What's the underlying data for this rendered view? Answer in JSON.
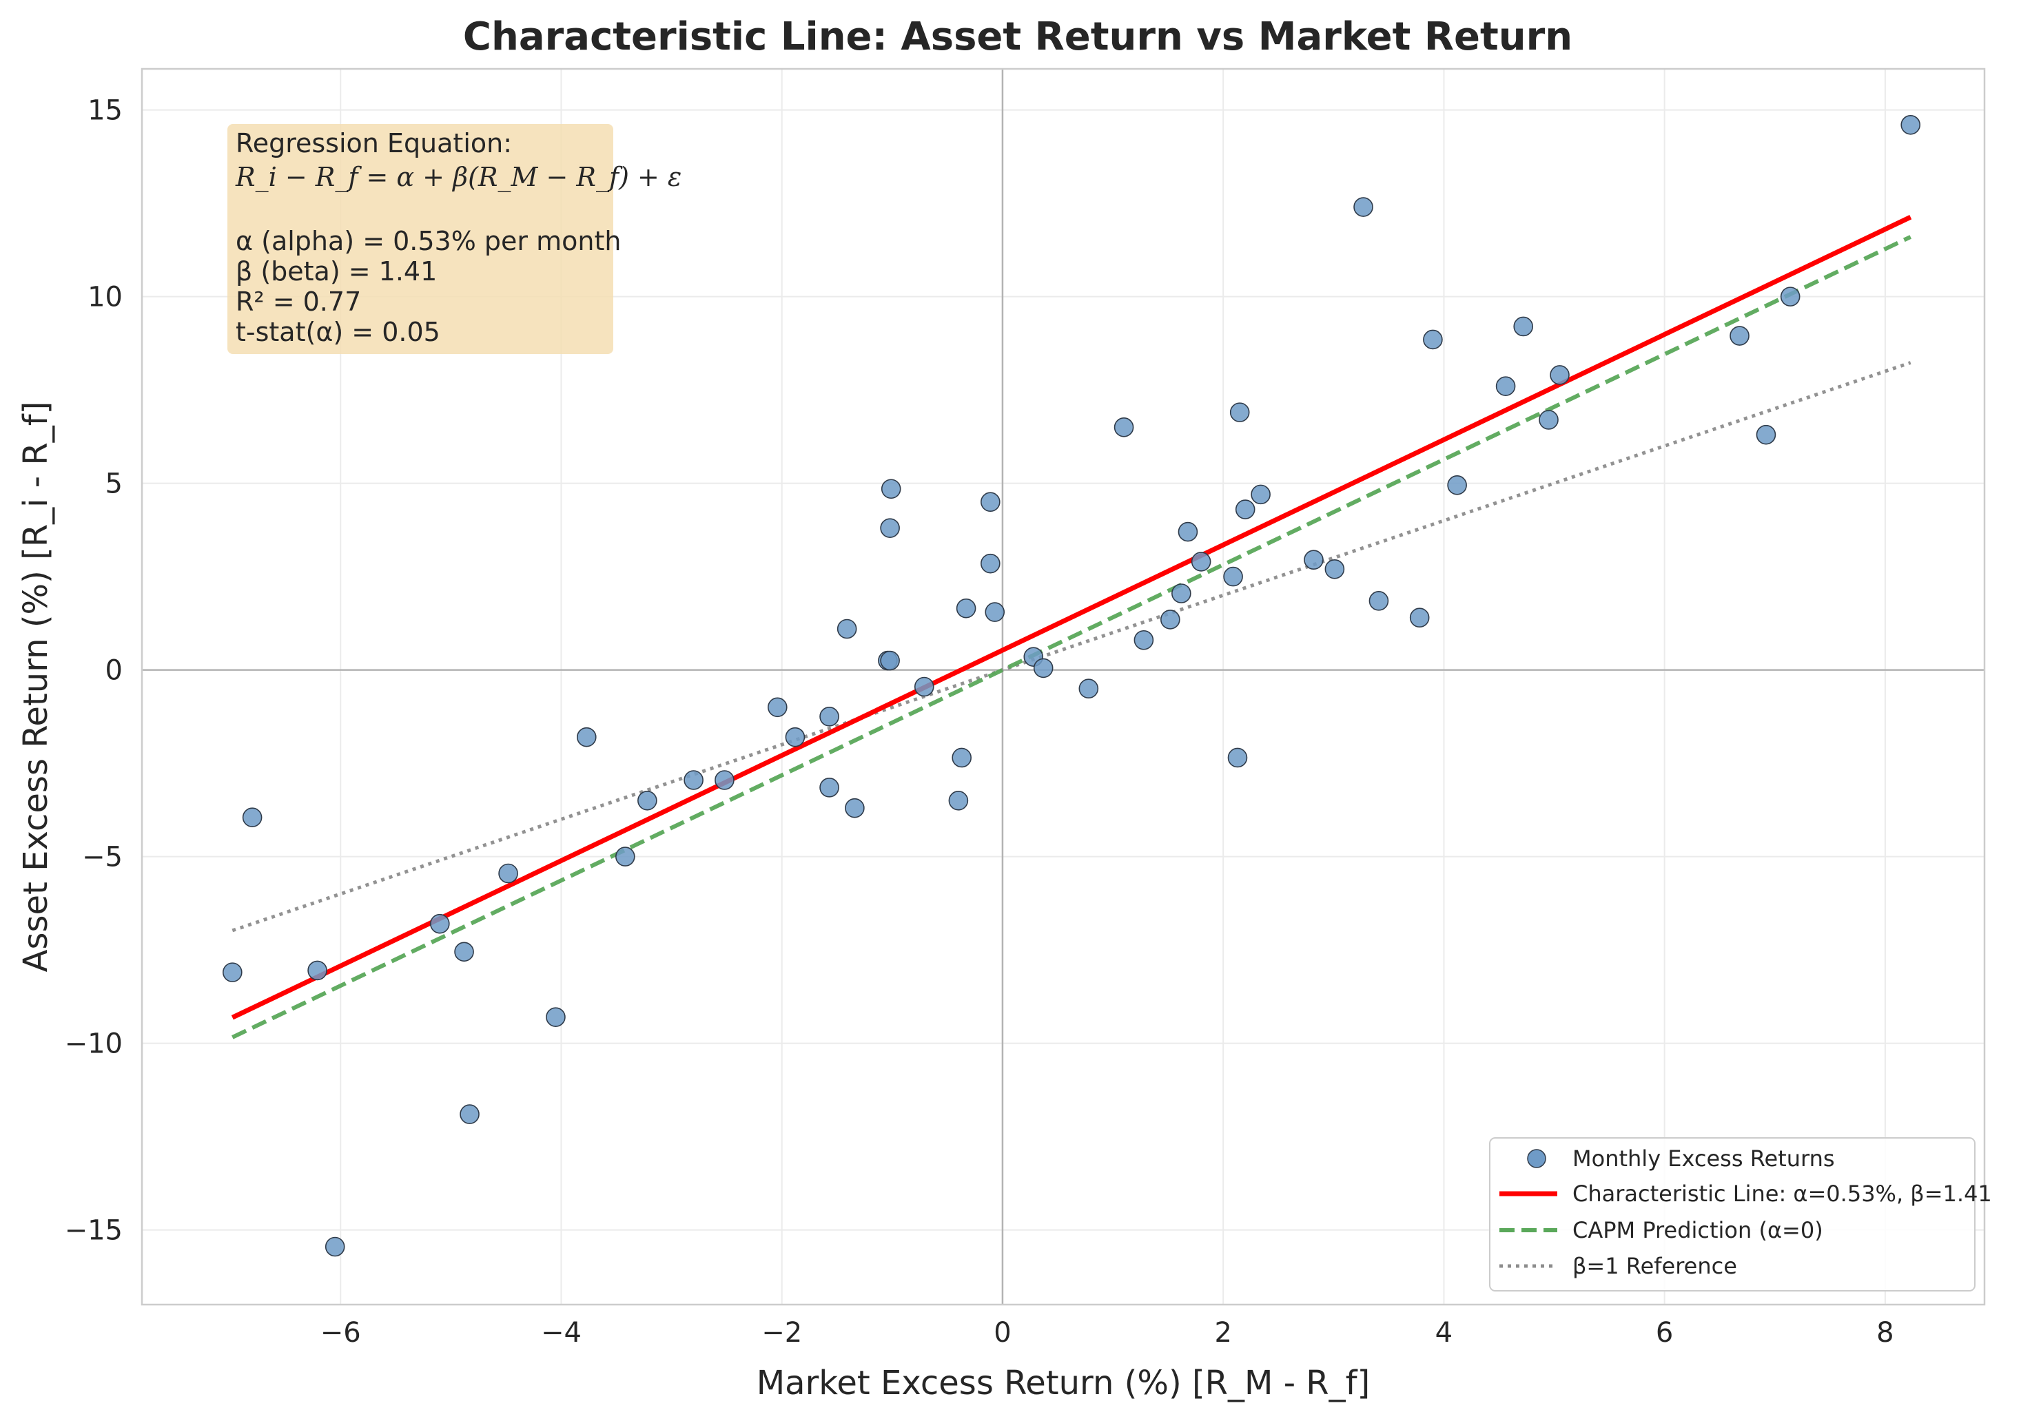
{
  "chart_data": {
    "type": "scatter",
    "title": "Characteristic Line: Asset Return vs Market Return",
    "xlabel": "Market Excess Return (%) [R_M - R_f]",
    "ylabel": "Asset Excess Return (%) [R_i - R_f]",
    "xlim": [
      -7.8,
      8.9
    ],
    "ylim": [
      -17,
      16.1
    ],
    "xticks": [
      -6,
      -4,
      -2,
      0,
      2,
      4,
      6,
      8
    ],
    "yticks": [
      -15,
      -10,
      -5,
      0,
      5,
      10,
      15
    ],
    "xtick_labels": [
      "−6",
      "−4",
      "−2",
      "0",
      "2",
      "4",
      "6",
      "8"
    ],
    "ytick_labels": [
      "−15",
      "−10",
      "−5",
      "0",
      "5",
      "10",
      "15"
    ],
    "grid": true,
    "legend_position": "bottom-right",
    "colors": {
      "points": "#6f9bc7",
      "point_edge": "#2f3b4a",
      "characteristic_line": "#ff0000",
      "capm_line": "#5aa85a",
      "reference_line": "#8c8c8c",
      "box_fill": "#f5deb3"
    },
    "series": [
      {
        "name": "Monthly Excess Returns",
        "type": "scatter",
        "x": [
          -6.98,
          -6.8,
          -6.21,
          -6.05,
          -5.1,
          -4.88,
          -4.83,
          -4.48,
          -4.05,
          -3.77,
          -3.42,
          -3.22,
          -2.8,
          -2.52,
          -2.04,
          -1.88,
          -1.57,
          -1.57,
          -1.41,
          -1.34,
          -1.04,
          -1.02,
          -1.02,
          -1.01,
          -0.71,
          -0.4,
          -0.37,
          -0.33,
          -0.11,
          -0.11,
          -0.07,
          0.28,
          0.37,
          0.78,
          1.1,
          1.28,
          1.52,
          1.62,
          1.68,
          1.8,
          2.09,
          2.13,
          2.15,
          2.2,
          2.34,
          2.82,
          3.01,
          3.27,
          3.41,
          3.78,
          3.9,
          4.12,
          4.56,
          4.72,
          4.95,
          5.05,
          6.68,
          6.92,
          7.14,
          8.23
        ],
        "y": [
          -8.1,
          -3.95,
          -8.05,
          -15.45,
          -6.8,
          -7.55,
          -11.9,
          -5.45,
          -9.3,
          -1.8,
          -5.0,
          -3.5,
          -2.95,
          -2.95,
          -1.0,
          -1.8,
          -1.25,
          -3.15,
          1.1,
          -3.7,
          0.25,
          3.8,
          0.25,
          4.85,
          -0.45,
          -3.5,
          -2.35,
          1.65,
          4.5,
          2.85,
          1.55,
          0.35,
          0.05,
          -0.5,
          6.5,
          0.8,
          1.35,
          2.05,
          3.7,
          2.9,
          2.5,
          -2.35,
          6.9,
          4.3,
          4.7,
          2.95,
          2.7,
          12.4,
          1.85,
          1.4,
          8.85,
          4.95,
          7.6,
          9.2,
          6.7,
          7.9,
          8.95,
          6.3,
          10.0,
          14.6
        ]
      },
      {
        "name": "Characteristic Line: α=0.53%, β=1.41",
        "type": "line",
        "style": "solid",
        "x": [
          -6.98,
          8.23
        ],
        "y": [
          -9.31,
          12.13
        ]
      },
      {
        "name": "CAPM Prediction (α=0)",
        "type": "line",
        "style": "dashed",
        "x": [
          -6.98,
          8.23
        ],
        "y": [
          -9.84,
          11.6
        ]
      },
      {
        "name": "β=1 Reference",
        "type": "line",
        "style": "dotted",
        "x": [
          -6.98,
          8.23
        ],
        "y": [
          -6.98,
          8.23
        ]
      }
    ],
    "annotation_box": {
      "heading": "Regression Equation:",
      "equation": "R_i − R_f = α + β(R_M − R_f) + ε",
      "alpha_line": "α (alpha) = 0.53% per month",
      "beta_line": "β (beta) = 1.41",
      "r2_line": "R² = 0.77",
      "tstat_line": "t-stat(α) = 0.05"
    }
  }
}
